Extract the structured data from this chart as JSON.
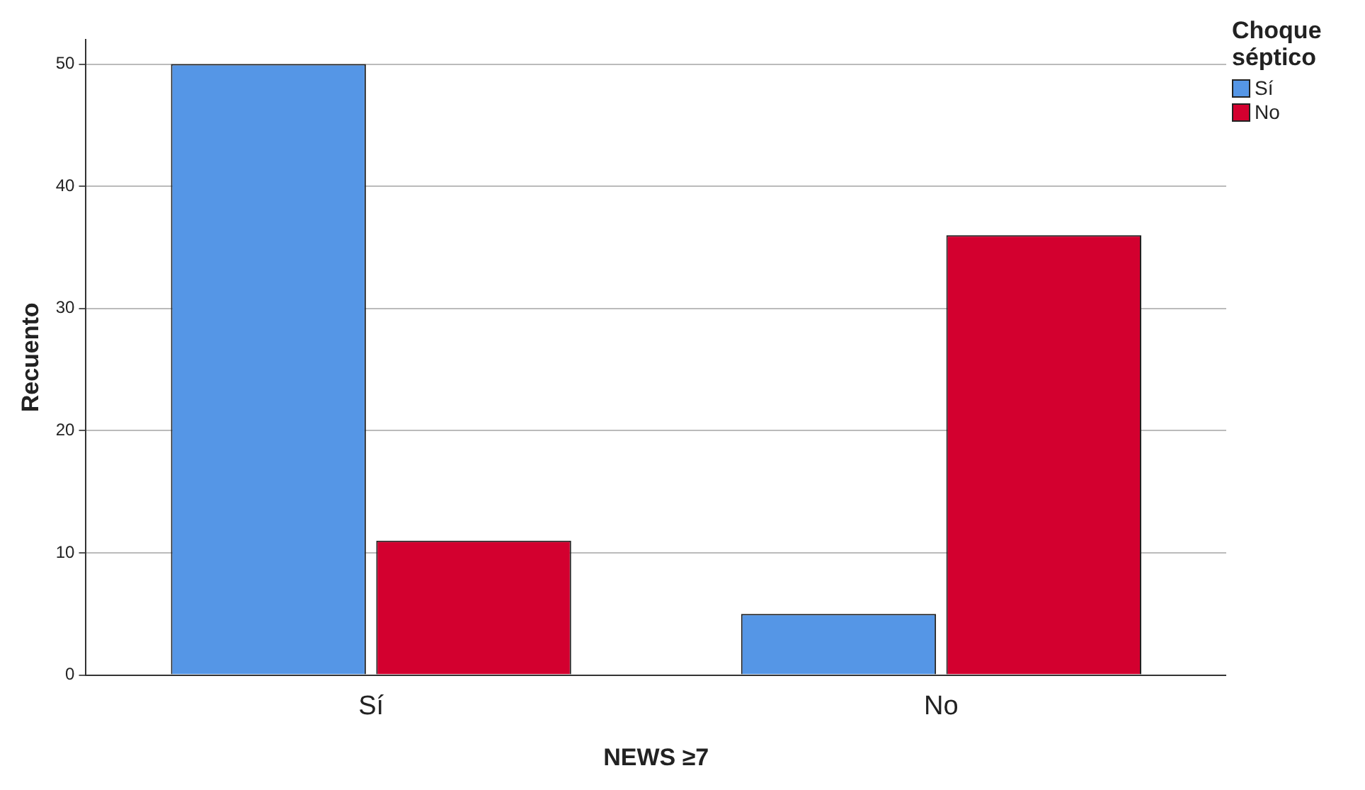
{
  "chart_data": {
    "type": "bar",
    "categories": [
      "Sí",
      "No"
    ],
    "series": [
      {
        "name": "Sí",
        "color": "#5596e6",
        "values": [
          50,
          5
        ]
      },
      {
        "name": "No",
        "color": "#d3002f",
        "values": [
          11,
          36
        ]
      }
    ],
    "xlabel": "NEWS ≥7",
    "ylabel": "Recuento",
    "legend_title": "Choque séptico",
    "ylim": [
      0,
      52
    ],
    "yticks": [
      0,
      10,
      20,
      30,
      40,
      50
    ],
    "grid": "y",
    "legend": "top right"
  }
}
